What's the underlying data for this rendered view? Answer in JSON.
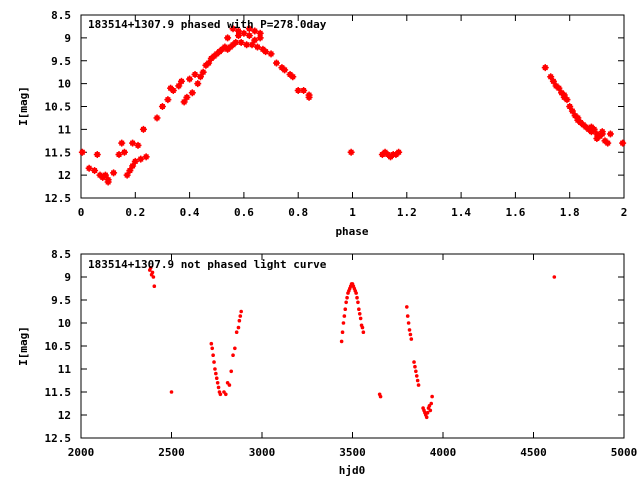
{
  "colors": {
    "points": "#ff0000",
    "axes": "#000000"
  },
  "chart_data": [
    {
      "type": "scatter",
      "title": "183514+1307.9 phased with P=278.0day",
      "xlabel": "phase",
      "ylabel": "I[mag]",
      "xlim": [
        0,
        2
      ],
      "ylim": [
        12.5,
        8.5
      ],
      "y_inverted": true,
      "grid": false,
      "xticks": [
        "0",
        "0.2",
        "0.4",
        "0.6",
        "0.8",
        "1",
        "1.2",
        "1.4",
        "1.6",
        "1.8",
        "2"
      ],
      "yticks": [
        "8.5",
        "9",
        "9.5",
        "10",
        "10.5",
        "11",
        "11.5",
        "12",
        "12.5"
      ],
      "marker": "star",
      "series": [
        {
          "points": [
            [
              0.005,
              11.5
            ],
            [
              0.03,
              11.85
            ],
            [
              0.05,
              11.9
            ],
            [
              0.06,
              11.55
            ],
            [
              0.07,
              12.0
            ],
            [
              0.08,
              12.05
            ],
            [
              0.09,
              12.0
            ],
            [
              0.1,
              12.1
            ],
            [
              0.1,
              12.15
            ],
            [
              0.12,
              11.95
            ],
            [
              0.14,
              11.55
            ],
            [
              0.15,
              11.3
            ],
            [
              0.16,
              11.5
            ],
            [
              0.17,
              12.0
            ],
            [
              0.18,
              11.9
            ],
            [
              0.19,
              11.8
            ],
            [
              0.2,
              11.7
            ],
            [
              0.19,
              11.3
            ],
            [
              0.21,
              11.35
            ],
            [
              0.22,
              11.65
            ],
            [
              0.23,
              11.0
            ],
            [
              0.24,
              11.6
            ],
            [
              0.28,
              10.75
            ],
            [
              0.3,
              10.5
            ],
            [
              0.32,
              10.35
            ],
            [
              0.33,
              10.1
            ],
            [
              0.34,
              10.15
            ],
            [
              0.36,
              10.05
            ],
            [
              0.37,
              9.95
            ],
            [
              0.38,
              10.4
            ],
            [
              0.39,
              10.3
            ],
            [
              0.4,
              9.9
            ],
            [
              0.41,
              10.2
            ],
            [
              0.42,
              9.8
            ],
            [
              0.43,
              10.0
            ],
            [
              0.44,
              9.85
            ],
            [
              0.45,
              9.75
            ],
            [
              0.46,
              9.6
            ],
            [
              0.47,
              9.55
            ],
            [
              0.48,
              9.45
            ],
            [
              0.49,
              9.4
            ],
            [
              0.5,
              9.35
            ],
            [
              0.51,
              9.3
            ],
            [
              0.52,
              9.25
            ],
            [
              0.53,
              9.2
            ],
            [
              0.54,
              9.25
            ],
            [
              0.55,
              9.2
            ],
            [
              0.56,
              9.15
            ],
            [
              0.57,
              9.1
            ],
            [
              0.58,
              8.95
            ],
            [
              0.59,
              9.1
            ],
            [
              0.6,
              8.9
            ],
            [
              0.61,
              9.15
            ],
            [
              0.62,
              8.95
            ],
            [
              0.63,
              9.15
            ],
            [
              0.64,
              9.05
            ],
            [
              0.65,
              9.2
            ],
            [
              0.66,
              9.0
            ],
            [
              0.67,
              9.25
            ],
            [
              0.68,
              9.3
            ],
            [
              0.54,
              9.0
            ],
            [
              0.56,
              8.8
            ],
            [
              0.58,
              8.85
            ],
            [
              0.62,
              8.8
            ],
            [
              0.64,
              8.85
            ],
            [
              0.66,
              8.9
            ],
            [
              0.7,
              9.35
            ],
            [
              0.72,
              9.55
            ],
            [
              0.74,
              9.65
            ],
            [
              0.75,
              9.7
            ],
            [
              0.77,
              9.8
            ],
            [
              0.78,
              9.85
            ],
            [
              0.8,
              10.15
            ],
            [
              0.82,
              10.15
            ],
            [
              0.84,
              10.25
            ],
            [
              0.84,
              10.3
            ],
            [
              0.995,
              11.5
            ],
            [
              1.11,
              11.55
            ],
            [
              1.12,
              11.5
            ],
            [
              1.13,
              11.55
            ],
            [
              1.14,
              11.6
            ],
            [
              1.15,
              11.55
            ],
            [
              1.16,
              11.55
            ],
            [
              1.17,
              11.5
            ],
            [
              1.71,
              9.65
            ],
            [
              1.73,
              9.85
            ],
            [
              1.74,
              9.95
            ],
            [
              1.75,
              10.05
            ],
            [
              1.76,
              10.1
            ],
            [
              1.77,
              10.2
            ],
            [
              1.78,
              10.3
            ],
            [
              1.79,
              10.35
            ],
            [
              1.8,
              10.5
            ],
            [
              1.81,
              10.6
            ],
            [
              1.82,
              10.7
            ],
            [
              1.83,
              10.75
            ],
            [
              1.84,
              10.85
            ],
            [
              1.85,
              10.9
            ],
            [
              1.86,
              10.95
            ],
            [
              1.87,
              11.0
            ],
            [
              1.88,
              11.05
            ],
            [
              1.89,
              11.0
            ],
            [
              1.9,
              11.1
            ],
            [
              1.91,
              11.15
            ],
            [
              1.92,
              11.05
            ],
            [
              1.93,
              11.25
            ],
            [
              1.94,
              11.3
            ],
            [
              1.78,
              10.25
            ],
            [
              1.83,
              10.8
            ],
            [
              1.88,
              10.95
            ],
            [
              1.9,
              11.2
            ],
            [
              1.92,
              11.1
            ],
            [
              1.95,
              11.1
            ],
            [
              1.995,
              11.3
            ]
          ]
        }
      ]
    },
    {
      "type": "scatter",
      "title": "183514+1307.9 not phased light curve",
      "xlabel": "hjd0",
      "ylabel": "I[mag]",
      "xlim": [
        2000,
        5000
      ],
      "ylim": [
        12.5,
        8.5
      ],
      "y_inverted": true,
      "grid": false,
      "xticks": [
        "2000",
        "2500",
        "3000",
        "3500",
        "4000",
        "4500",
        "5000"
      ],
      "yticks": [
        "8.5",
        "9",
        "9.5",
        "10",
        "10.5",
        "11",
        "11.5",
        "12",
        "12.5"
      ],
      "marker": "dot",
      "series": [
        {
          "points": [
            [
              2380,
              8.85
            ],
            [
              2385,
              8.8
            ],
            [
              2390,
              8.95
            ],
            [
              2395,
              8.9
            ],
            [
              2400,
              9.0
            ],
            [
              2405,
              9.2
            ],
            [
              2500,
              11.5
            ],
            [
              2720,
              10.45
            ],
            [
              2725,
              10.55
            ],
            [
              2730,
              10.7
            ],
            [
              2735,
              10.85
            ],
            [
              2740,
              11.0
            ],
            [
              2745,
              11.1
            ],
            [
              2750,
              11.2
            ],
            [
              2755,
              11.3
            ],
            [
              2760,
              11.4
            ],
            [
              2765,
              11.5
            ],
            [
              2770,
              11.55
            ],
            [
              2790,
              11.5
            ],
            [
              2800,
              11.55
            ],
            [
              2810,
              11.3
            ],
            [
              2820,
              11.35
            ],
            [
              2830,
              11.05
            ],
            [
              2840,
              10.7
            ],
            [
              2850,
              10.55
            ],
            [
              2860,
              10.2
            ],
            [
              2870,
              10.1
            ],
            [
              2875,
              9.95
            ],
            [
              2880,
              9.85
            ],
            [
              2885,
              9.75
            ],
            [
              3440,
              10.4
            ],
            [
              3445,
              10.2
            ],
            [
              3450,
              10.0
            ],
            [
              3455,
              9.85
            ],
            [
              3460,
              9.7
            ],
            [
              3465,
              9.55
            ],
            [
              3470,
              9.45
            ],
            [
              3475,
              9.35
            ],
            [
              3480,
              9.3
            ],
            [
              3485,
              9.25
            ],
            [
              3490,
              9.2
            ],
            [
              3495,
              9.15
            ],
            [
              3500,
              9.15
            ],
            [
              3505,
              9.2
            ],
            [
              3510,
              9.25
            ],
            [
              3515,
              9.3
            ],
            [
              3520,
              9.35
            ],
            [
              3525,
              9.45
            ],
            [
              3530,
              9.55
            ],
            [
              3535,
              9.7
            ],
            [
              3540,
              9.8
            ],
            [
              3545,
              9.9
            ],
            [
              3550,
              10.05
            ],
            [
              3555,
              10.1
            ],
            [
              3560,
              10.2
            ],
            [
              3650,
              11.55
            ],
            [
              3655,
              11.6
            ],
            [
              3800,
              9.65
            ],
            [
              3805,
              9.85
            ],
            [
              3810,
              10.0
            ],
            [
              3815,
              10.15
            ],
            [
              3820,
              10.25
            ],
            [
              3825,
              10.35
            ],
            [
              3840,
              10.85
            ],
            [
              3845,
              10.95
            ],
            [
              3850,
              11.05
            ],
            [
              3855,
              11.15
            ],
            [
              3860,
              11.25
            ],
            [
              3865,
              11.35
            ],
            [
              3890,
              11.85
            ],
            [
              3895,
              11.9
            ],
            [
              3900,
              11.95
            ],
            [
              3905,
              12.0
            ],
            [
              3910,
              12.05
            ],
            [
              3915,
              11.95
            ],
            [
              3920,
              11.85
            ],
            [
              3925,
              11.8
            ],
            [
              3930,
              11.9
            ],
            [
              3935,
              11.75
            ],
            [
              3940,
              11.6
            ],
            [
              4615,
              9.0
            ]
          ]
        }
      ]
    }
  ]
}
